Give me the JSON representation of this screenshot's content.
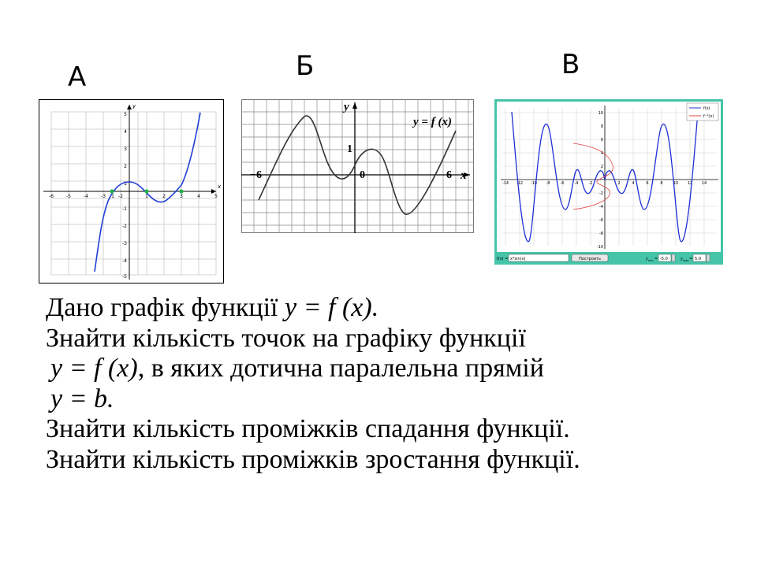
{
  "labels": {
    "a": "А",
    "b": "Б",
    "c": "В"
  },
  "figA": {
    "x_ticks": [
      "-6",
      "-5",
      "-4",
      "-3",
      "-2",
      "-1",
      "1",
      "2",
      "3",
      "4",
      "5"
    ],
    "y_ticks": [
      "5",
      "4",
      "3",
      "2",
      "1",
      "-1",
      "-2",
      "-3",
      "-4",
      "-5"
    ],
    "x_axis": "x",
    "y_axis": "y",
    "curve_color": "#1f3fd6",
    "point_color": "#22b14c"
  },
  "figB": {
    "y_axis": "y",
    "x_axis": "x",
    "label_neg6": "−6",
    "label_0": "0",
    "label_1": "1",
    "label_6": "6",
    "func_label": "y = f (x)"
  },
  "figC": {
    "x_ticks": [
      "-14",
      "-12",
      "-10",
      "-8",
      "-6",
      "-4",
      "-2",
      "2",
      "4",
      "6",
      "8",
      "10",
      "12",
      "14"
    ],
    "y_ticks": [
      "10",
      "8",
      "6",
      "4",
      "2",
      "-2",
      "-4",
      "-6",
      "-8",
      "-10"
    ],
    "legend": [
      "f(x)",
      "f⁻¹(x)"
    ],
    "fx_label": "f(x) =",
    "fx_value": "x*sin(x)",
    "build_button": "Построить",
    "ymin_label": "y",
    "ymin_sub": "min",
    "ymin_eq": "=",
    "ymin_value": "-5.0",
    "ymax_label": "y",
    "ymax_sub": "max",
    "ymax_eq": "=",
    "ymax_value": "5.0",
    "frame_color": "#45c4a8",
    "fx_color": "#1f2fd6",
    "inv_color": "#e04040"
  },
  "task": {
    "line1_text": "Дано графік функції ",
    "line1_math": "y = f (x).",
    "line2": "Знайти  кількість точок на графіку функції",
    "line3_math": "y = f (x)",
    "line3_text": ", в яких дотична  паралельна прямій",
    "line4_math": "y = b.",
    "line5": "Знайти кількість проміжків спадання функції.",
    "line6": "Знайти кількість проміжків зростання функції."
  }
}
